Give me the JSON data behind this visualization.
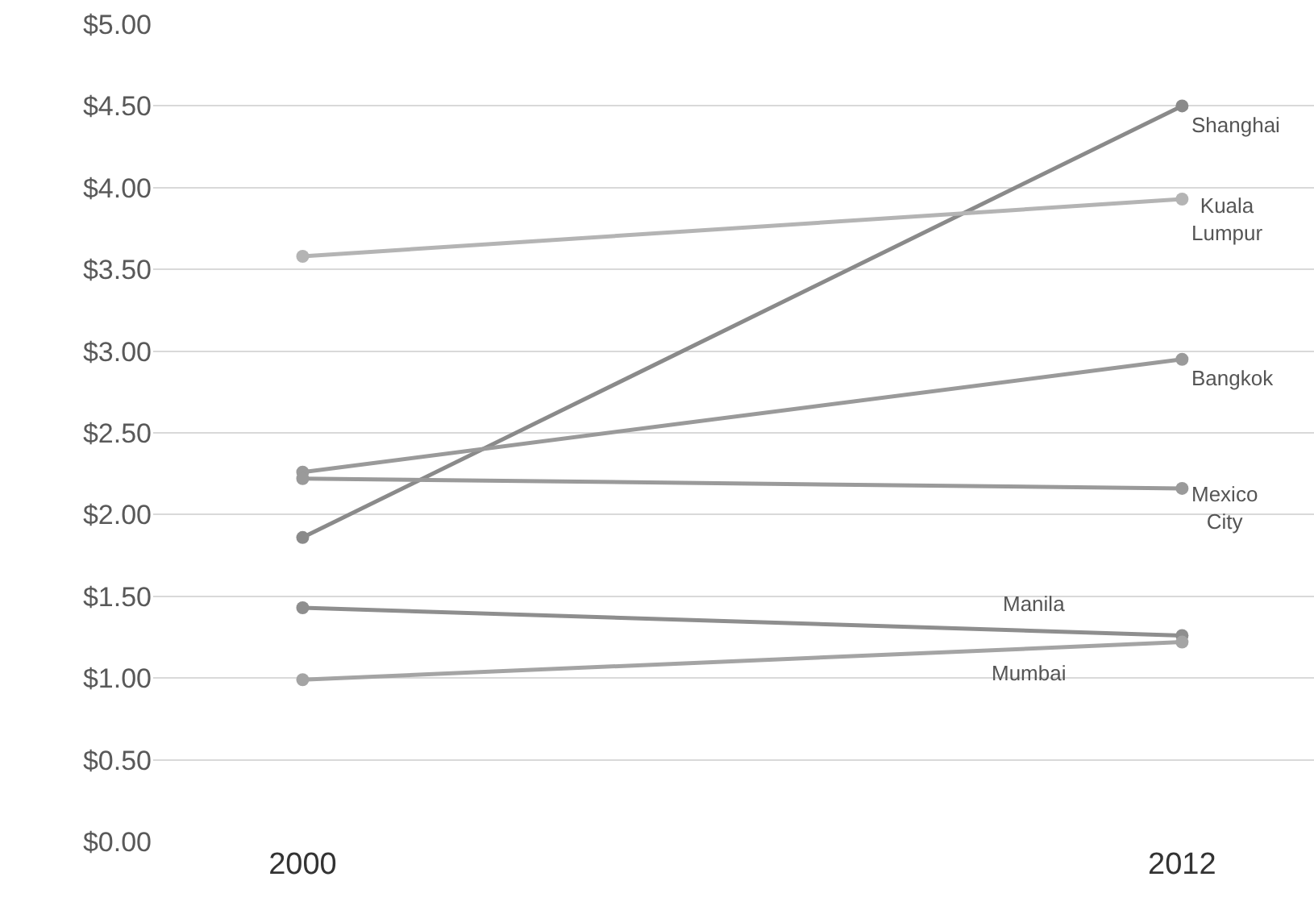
{
  "chart_data": {
    "type": "line",
    "categories": [
      "2000",
      "2012"
    ],
    "series": [
      {
        "name": "Shanghai",
        "color": "#8a8a8a",
        "values": [
          1.86,
          4.5
        ]
      },
      {
        "name": "Kuala Lumpur",
        "color": "#b4b4b4",
        "values": [
          3.58,
          3.93
        ]
      },
      {
        "name": "Bangkok",
        "color": "#9a9a9a",
        "values": [
          2.26,
          2.95
        ]
      },
      {
        "name": "Mexico City",
        "color": "#9a9a9a",
        "values": [
          2.22,
          2.16
        ]
      },
      {
        "name": "Manila",
        "color": "#8e8e8e",
        "values": [
          1.43,
          1.26
        ]
      },
      {
        "name": "Mumbai",
        "color": "#a4a4a4",
        "values": [
          0.99,
          1.22
        ]
      }
    ],
    "ylim": [
      0,
      5
    ],
    "yticks": [
      {
        "value": 0,
        "label": "$0.00"
      },
      {
        "value": 0.5,
        "label": "$0.50"
      },
      {
        "value": 1,
        "label": "$1.00"
      },
      {
        "value": 1.5,
        "label": "$1.50"
      },
      {
        "value": 2,
        "label": "$2.00"
      },
      {
        "value": 2.5,
        "label": "$2.50"
      },
      {
        "value": 3,
        "label": "$3.00"
      },
      {
        "value": 3.5,
        "label": "$3.50"
      },
      {
        "value": 4,
        "label": "$4.00"
      },
      {
        "value": 4.5,
        "label": "$4.50"
      },
      {
        "value": 5,
        "label": "$5.00"
      }
    ],
    "grid": "y",
    "marker": "circle",
    "line_style": "solid",
    "legend": false
  }
}
